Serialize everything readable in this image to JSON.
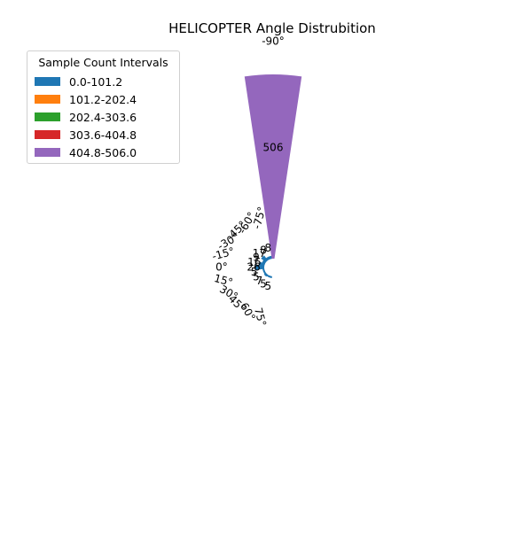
{
  "chart_data": {
    "type": "polar-bar",
    "title": "HELICOPTER Angle Distrubition",
    "legend": {
      "title": "Sample Count Intervals",
      "placement": "top-left",
      "entries": [
        {
          "label": "0.0-101.2",
          "color": "#1f77b4"
        },
        {
          "label": "101.2-202.4",
          "color": "#ff7f0e"
        },
        {
          "label": "202.4-303.6",
          "color": "#2ca02c"
        },
        {
          "label": "303.6-404.8",
          "color": "#d62728"
        },
        {
          "label": "404.8-506.0",
          "color": "#9467bd"
        }
      ]
    },
    "angle_labels": [
      "0°",
      "-15°",
      "-30°",
      "-45°",
      "-60°",
      "-75°",
      "-90°",
      "75°",
      "60°",
      "45°",
      "30°",
      "15°"
    ],
    "bins": [
      {
        "angle": 0,
        "value": 26,
        "color": "#1f77b4"
      },
      {
        "angle": -15,
        "value": 16,
        "color": "#1f77b4"
      },
      {
        "angle": -30,
        "value": 9,
        "color": "#1f77b4"
      },
      {
        "angle": -45,
        "value": 17,
        "color": "#1f77b4"
      },
      {
        "angle": -60,
        "value": 8,
        "color": "#1f77b4"
      },
      {
        "angle": -75,
        "value": 8,
        "color": "#1f77b4"
      },
      {
        "angle": -90,
        "value": 506,
        "color": "#9467bd"
      },
      {
        "angle": 75,
        "value": 5,
        "color": "#1f77b4"
      },
      {
        "angle": 60,
        "value": 5,
        "color": "#1f77b4"
      },
      {
        "angle": 45,
        "value": 7,
        "color": "#1f77b4"
      },
      {
        "angle": 30,
        "value": 5,
        "color": "#1f77b4"
      },
      {
        "angle": 15,
        "value": 5,
        "color": "#1f77b4"
      }
    ],
    "bar_labels": [
      "26",
      "16",
      "9",
      "17",
      "8",
      "8",
      "506",
      "5",
      "5",
      "7",
      "5",
      "5"
    ],
    "grid": false
  }
}
